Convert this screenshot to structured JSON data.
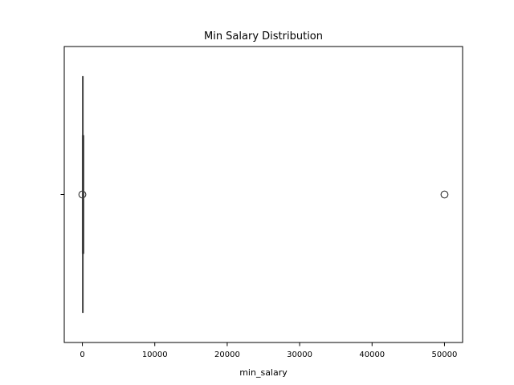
{
  "chart_data": {
    "type": "boxplot",
    "title": "Min Salary Distribution",
    "xlabel": "min_salary",
    "ylabel": "",
    "orientation": "horizontal",
    "xlim": [
      -2500,
      52500
    ],
    "x_ticks": [
      0,
      10000,
      20000,
      30000,
      40000,
      50000
    ],
    "x_tick_labels": [
      "0",
      "10000",
      "20000",
      "30000",
      "40000",
      "50000"
    ],
    "grid": false,
    "legend": "none",
    "box": {
      "whisker_low": 0,
      "q1": 20,
      "median": 60,
      "q3": 100,
      "whisker_high": 200
    },
    "outliers": [
      0,
      50000
    ],
    "colors": {
      "box_line": "#3f3f3f",
      "outlier_edge": "#3f3f3f",
      "axes": "#000000"
    }
  }
}
